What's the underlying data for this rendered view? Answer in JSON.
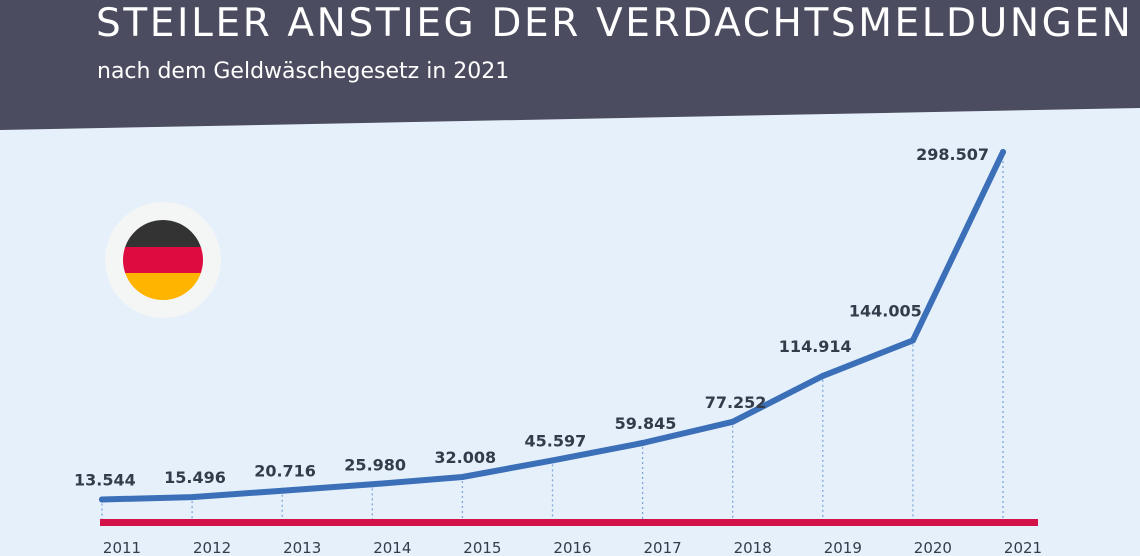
{
  "colors": {
    "background": "#e6f0fb",
    "header": "#4b4c5f",
    "line": "#3b6fb8",
    "baseline": "#d3124a",
    "guides": "#7fa7d9",
    "text": "#333c4a",
    "flag_black": "#333333",
    "flag_red": "#dd0b3f",
    "flag_gold": "#ffb400"
  },
  "header": {
    "title": "STEILER ANSTIEG DER VERDACHTSMELDUNGEN",
    "subtitle": "nach dem Geldwäschegesetz in 2021"
  },
  "flag_icon": "germany-flag-icon",
  "chart_data": {
    "type": "line",
    "title": "STEILER ANSTIEG DER VERDACHTSMELDUNGEN",
    "subtitle": "nach dem Geldwäschegesetz in 2021",
    "xlabel": "",
    "ylabel": "",
    "grid": false,
    "categories": [
      "2011",
      "2012",
      "2013",
      "2014",
      "2015",
      "2016",
      "2017",
      "2018",
      "2019",
      "2020",
      "2021"
    ],
    "series": [
      {
        "values": [
          13544,
          15496,
          20716,
          25980,
          32008,
          45597,
          59845,
          77252,
          114914,
          144005,
          298507
        ],
        "labels": [
          "13.544",
          "15.496",
          "20.716",
          "25.980",
          "32.008",
          "45.597",
          "59.845",
          "77.252",
          "114.914",
          "144.005",
          "298.507"
        ]
      }
    ]
  }
}
